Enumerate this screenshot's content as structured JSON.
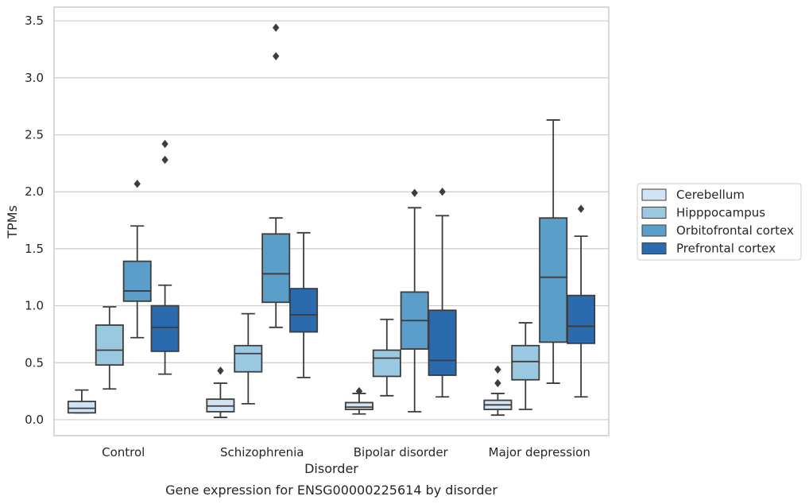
{
  "chart_data": {
    "type": "box",
    "title": "",
    "caption": "Gene expression for ENSG00000225614 by disorder",
    "xlabel": "Disorder",
    "ylabel": "TPMs",
    "ylim": [
      -0.14,
      3.62
    ],
    "yticks": [
      "0.0",
      "0.5",
      "1.0",
      "1.5",
      "2.0",
      "2.5",
      "3.0",
      "3.5"
    ],
    "categories": [
      "Control",
      "Schizophrenia",
      "Bipolar disorder",
      "Major depression"
    ],
    "grid": "horizontal",
    "legend_position": "right",
    "series": [
      {
        "name": "Cerebellum",
        "color": "#d2e3f3",
        "boxes": [
          {
            "whislo": 0.06,
            "q1": 0.06,
            "med": 0.1,
            "q3": 0.16,
            "whishi": 0.26,
            "fliers": []
          },
          {
            "whislo": 0.02,
            "q1": 0.07,
            "med": 0.12,
            "q3": 0.18,
            "whishi": 0.32,
            "fliers": [
              0.43
            ]
          },
          {
            "whislo": 0.05,
            "q1": 0.09,
            "med": 0.11,
            "q3": 0.15,
            "whishi": 0.23,
            "fliers": [
              0.25
            ]
          },
          {
            "whislo": 0.04,
            "q1": 0.09,
            "med": 0.13,
            "q3": 0.17,
            "whishi": 0.23,
            "fliers": [
              0.32,
              0.44
            ]
          }
        ]
      },
      {
        "name": "Hipppocampus",
        "color": "#9ac8e0",
        "boxes": [
          {
            "whislo": 0.27,
            "q1": 0.48,
            "med": 0.61,
            "q3": 0.83,
            "whishi": 0.99,
            "fliers": []
          },
          {
            "whislo": 0.14,
            "q1": 0.42,
            "med": 0.58,
            "q3": 0.65,
            "whishi": 0.93,
            "fliers": []
          },
          {
            "whislo": 0.21,
            "q1": 0.38,
            "med": 0.54,
            "q3": 0.61,
            "whishi": 0.88,
            "fliers": []
          },
          {
            "whislo": 0.09,
            "q1": 0.35,
            "med": 0.51,
            "q3": 0.65,
            "whishi": 0.85,
            "fliers": []
          }
        ]
      },
      {
        "name": "Orbitofrontal cortex",
        "color": "#5a9ec9",
        "boxes": [
          {
            "whislo": 0.72,
            "q1": 1.04,
            "med": 1.13,
            "q3": 1.39,
            "whishi": 1.7,
            "fliers": [
              2.07
            ]
          },
          {
            "whislo": 0.81,
            "q1": 1.03,
            "med": 1.28,
            "q3": 1.63,
            "whishi": 1.77,
            "fliers": [
              3.19,
              3.44
            ]
          },
          {
            "whislo": 0.07,
            "q1": 0.62,
            "med": 0.87,
            "q3": 1.12,
            "whishi": 1.86,
            "fliers": [
              1.99
            ]
          },
          {
            "whislo": 0.32,
            "q1": 0.68,
            "med": 1.25,
            "q3": 1.77,
            "whishi": 2.63,
            "fliers": []
          }
        ]
      },
      {
        "name": "Prefrontal cortex",
        "color": "#2a6aad",
        "boxes": [
          {
            "whislo": 0.4,
            "q1": 0.6,
            "med": 0.81,
            "q3": 1.0,
            "whishi": 1.18,
            "fliers": [
              2.28,
              2.42
            ]
          },
          {
            "whislo": 0.37,
            "q1": 0.77,
            "med": 0.92,
            "q3": 1.15,
            "whishi": 1.64,
            "fliers": []
          },
          {
            "whislo": 0.2,
            "q1": 0.39,
            "med": 0.52,
            "q3": 0.96,
            "whishi": 1.79,
            "fliers": [
              2.0
            ]
          },
          {
            "whislo": 0.2,
            "q1": 0.67,
            "med": 0.82,
            "q3": 1.09,
            "whishi": 1.61,
            "fliers": [
              1.85
            ]
          }
        ]
      }
    ]
  }
}
